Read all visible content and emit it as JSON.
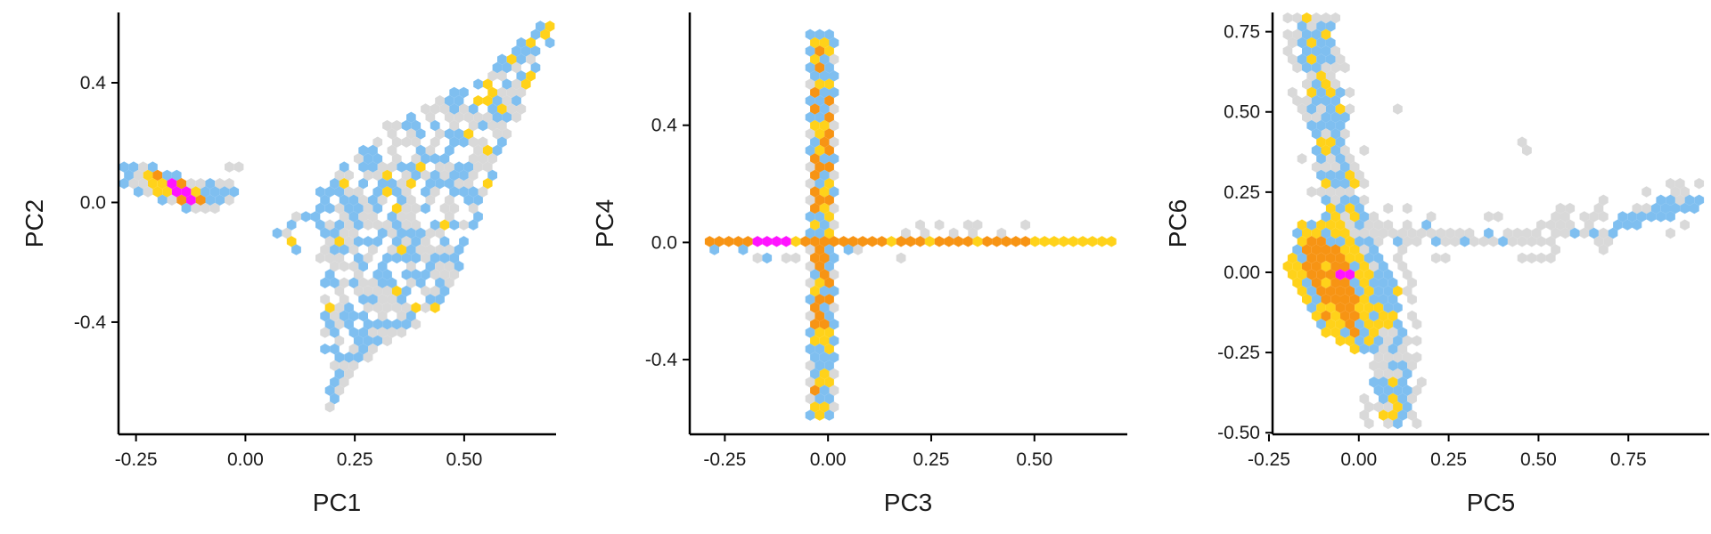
{
  "chart_data": [
    {
      "type": "hexbin",
      "xlabel": "PC1",
      "ylabel": "PC2",
      "xlim": [
        -0.29,
        0.71
      ],
      "ylim": [
        -0.775,
        0.635
      ],
      "xticks": [
        -0.25,
        0.0,
        0.25,
        0.5
      ],
      "xtick_labels": [
        "-0.25",
        "0.00",
        "0.25",
        "0.50"
      ],
      "yticks": [
        -0.4,
        0.0,
        0.4
      ],
      "ytick_labels": [
        "-0.4",
        "0.0",
        "0.4"
      ],
      "grid": false,
      "legend": "none"
    },
    {
      "type": "hexbin",
      "xlabel": "PC3",
      "ylabel": "PC4",
      "xlim": [
        -0.335,
        0.725
      ],
      "ylim": [
        -0.655,
        0.785
      ],
      "xticks": [
        -0.25,
        0.0,
        0.25,
        0.5
      ],
      "xtick_labels": [
        "-0.25",
        "0.00",
        "0.25",
        "0.50"
      ],
      "yticks": [
        -0.4,
        0.0,
        0.4
      ],
      "ytick_labels": [
        "-0.4",
        "0.0",
        "0.4"
      ],
      "grid": false,
      "legend": "none"
    },
    {
      "type": "hexbin",
      "xlabel": "PC5",
      "ylabel": "PC6",
      "xlim": [
        -0.24,
        0.975
      ],
      "ylim": [
        -0.505,
        0.81
      ],
      "xticks": [
        -0.25,
        0.0,
        0.25,
        0.5,
        0.75
      ],
      "xtick_labels": [
        "-0.25",
        "0.00",
        "0.25",
        "0.50",
        "0.75"
      ],
      "yticks": [
        -0.5,
        -0.25,
        0.0,
        0.25,
        0.5,
        0.75
      ],
      "ytick_labels": [
        "-0.50",
        "-0.25",
        "0.00",
        "0.25",
        "0.50",
        "0.75"
      ],
      "grid": false,
      "legend": "none"
    }
  ],
  "colors": {
    "level_1": "#d9d9d9",
    "level_2": "#7fbff0",
    "level_3": "#ffd21a",
    "level_4": "#f79414",
    "level_5": "#ff14ff"
  }
}
